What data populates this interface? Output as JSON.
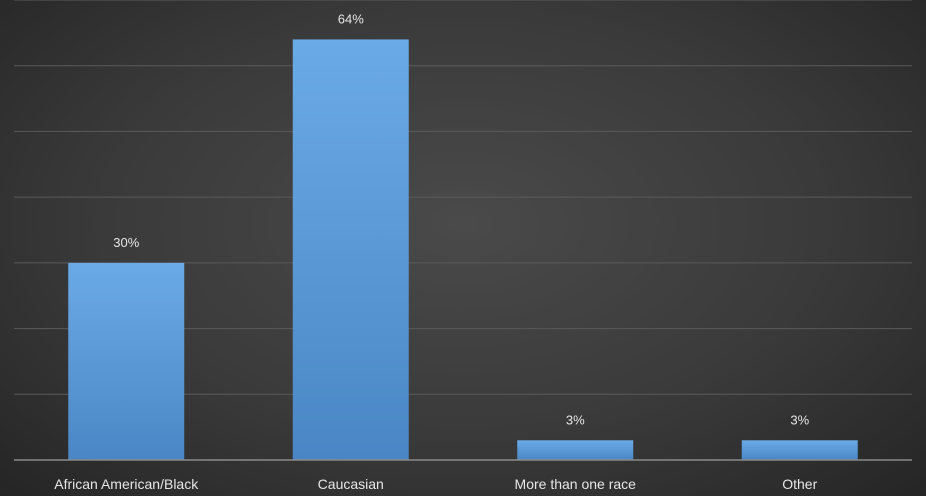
{
  "chart_data": {
    "type": "bar",
    "categories": [
      "African American/Black",
      "Caucasian",
      "More than one race",
      "Other"
    ],
    "values": [
      30,
      64,
      3,
      3
    ],
    "value_labels": [
      "30%",
      "64%",
      "3%",
      "3%"
    ],
    "title": "",
    "xlabel": "",
    "ylabel": "",
    "ylim": [
      0,
      70
    ],
    "grid": true,
    "legend": "none",
    "bar_color": "#5b9bd5",
    "background_color": "#3a3a3a"
  }
}
